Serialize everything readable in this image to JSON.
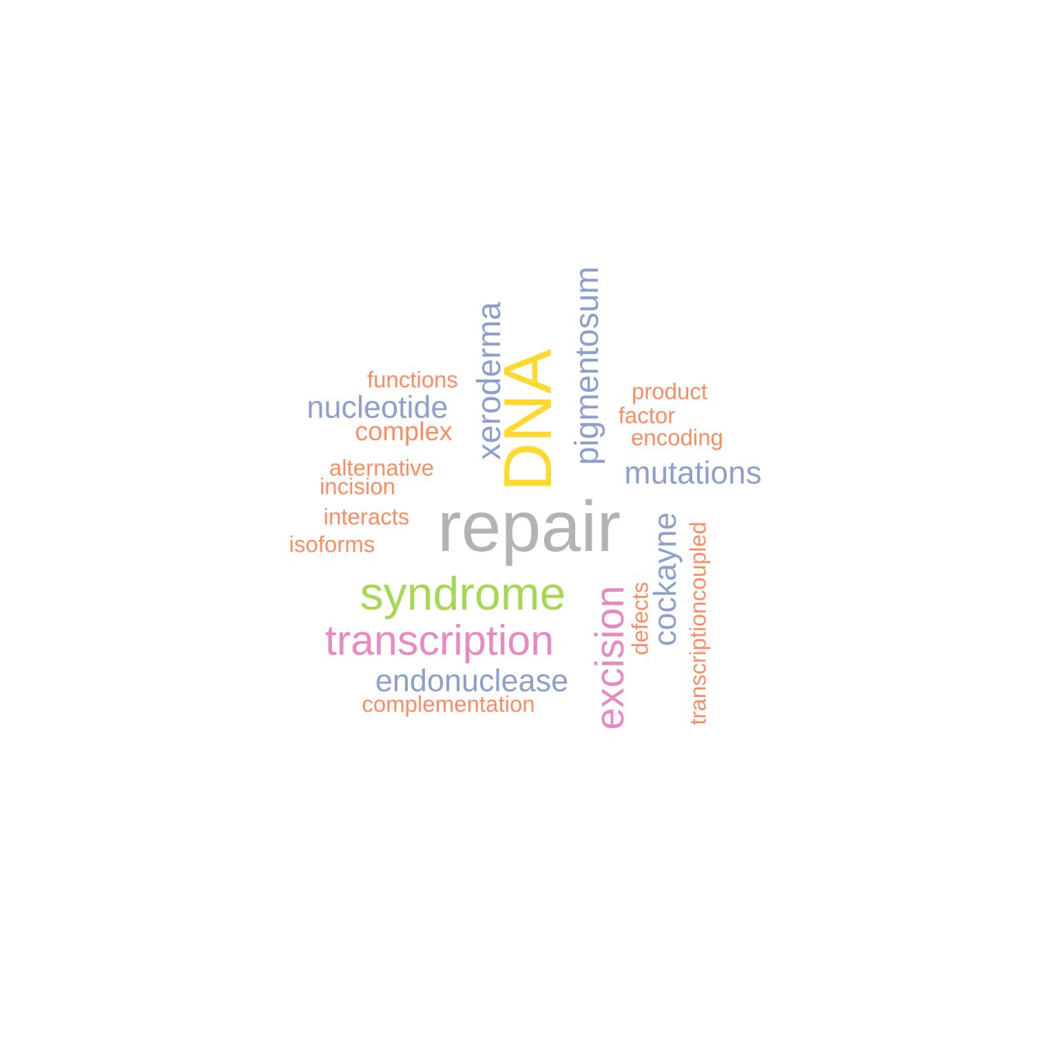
{
  "colors": {
    "grey": "#b3b3b3",
    "yellow": "#ffd92f",
    "green": "#a6d854",
    "pink": "#e78ac3",
    "blue": "#8da0cb",
    "orange": "#fc8d62"
  },
  "words": [
    {
      "key": "repair",
      "text": "repair",
      "color": "#b3b3b3"
    },
    {
      "key": "dna",
      "text": "DNA",
      "color": "#ffd92f"
    },
    {
      "key": "syndrome",
      "text": "syndrome",
      "color": "#a6d854"
    },
    {
      "key": "transcription",
      "text": "transcription",
      "color": "#e78ac3"
    },
    {
      "key": "excision",
      "text": "excision",
      "color": "#e78ac3"
    },
    {
      "key": "xeroderma",
      "text": "xeroderma",
      "color": "#8da0cb"
    },
    {
      "key": "pigmentosum",
      "text": "pigmentosum",
      "color": "#8da0cb"
    },
    {
      "key": "nucleotide",
      "text": "nucleotide",
      "color": "#8da0cb"
    },
    {
      "key": "mutations",
      "text": "mutations",
      "color": "#8da0cb"
    },
    {
      "key": "cockayne",
      "text": "cockayne",
      "color": "#8da0cb"
    },
    {
      "key": "endonuclease",
      "text": "endonuclease",
      "color": "#8da0cb"
    },
    {
      "key": "functions",
      "text": "functions",
      "color": "#fc8d62"
    },
    {
      "key": "complex",
      "text": "complex",
      "color": "#fc8d62"
    },
    {
      "key": "alternative",
      "text": "alternative",
      "color": "#fc8d62"
    },
    {
      "key": "incision",
      "text": "incision",
      "color": "#fc8d62"
    },
    {
      "key": "interacts",
      "text": "interacts",
      "color": "#fc8d62"
    },
    {
      "key": "isoforms",
      "text": "isoforms",
      "color": "#fc8d62"
    },
    {
      "key": "product",
      "text": "product",
      "color": "#fc8d62"
    },
    {
      "key": "factor",
      "text": "factor",
      "color": "#fc8d62"
    },
    {
      "key": "encoding",
      "text": "encoding",
      "color": "#fc8d62"
    },
    {
      "key": "defects",
      "text": "defects",
      "color": "#fc8d62"
    },
    {
      "key": "transcriptioncoupled",
      "text": "transcriptioncoupled",
      "color": "#fc8d62"
    },
    {
      "key": "complementation",
      "text": "complementation",
      "color": "#fc8d62"
    }
  ]
}
